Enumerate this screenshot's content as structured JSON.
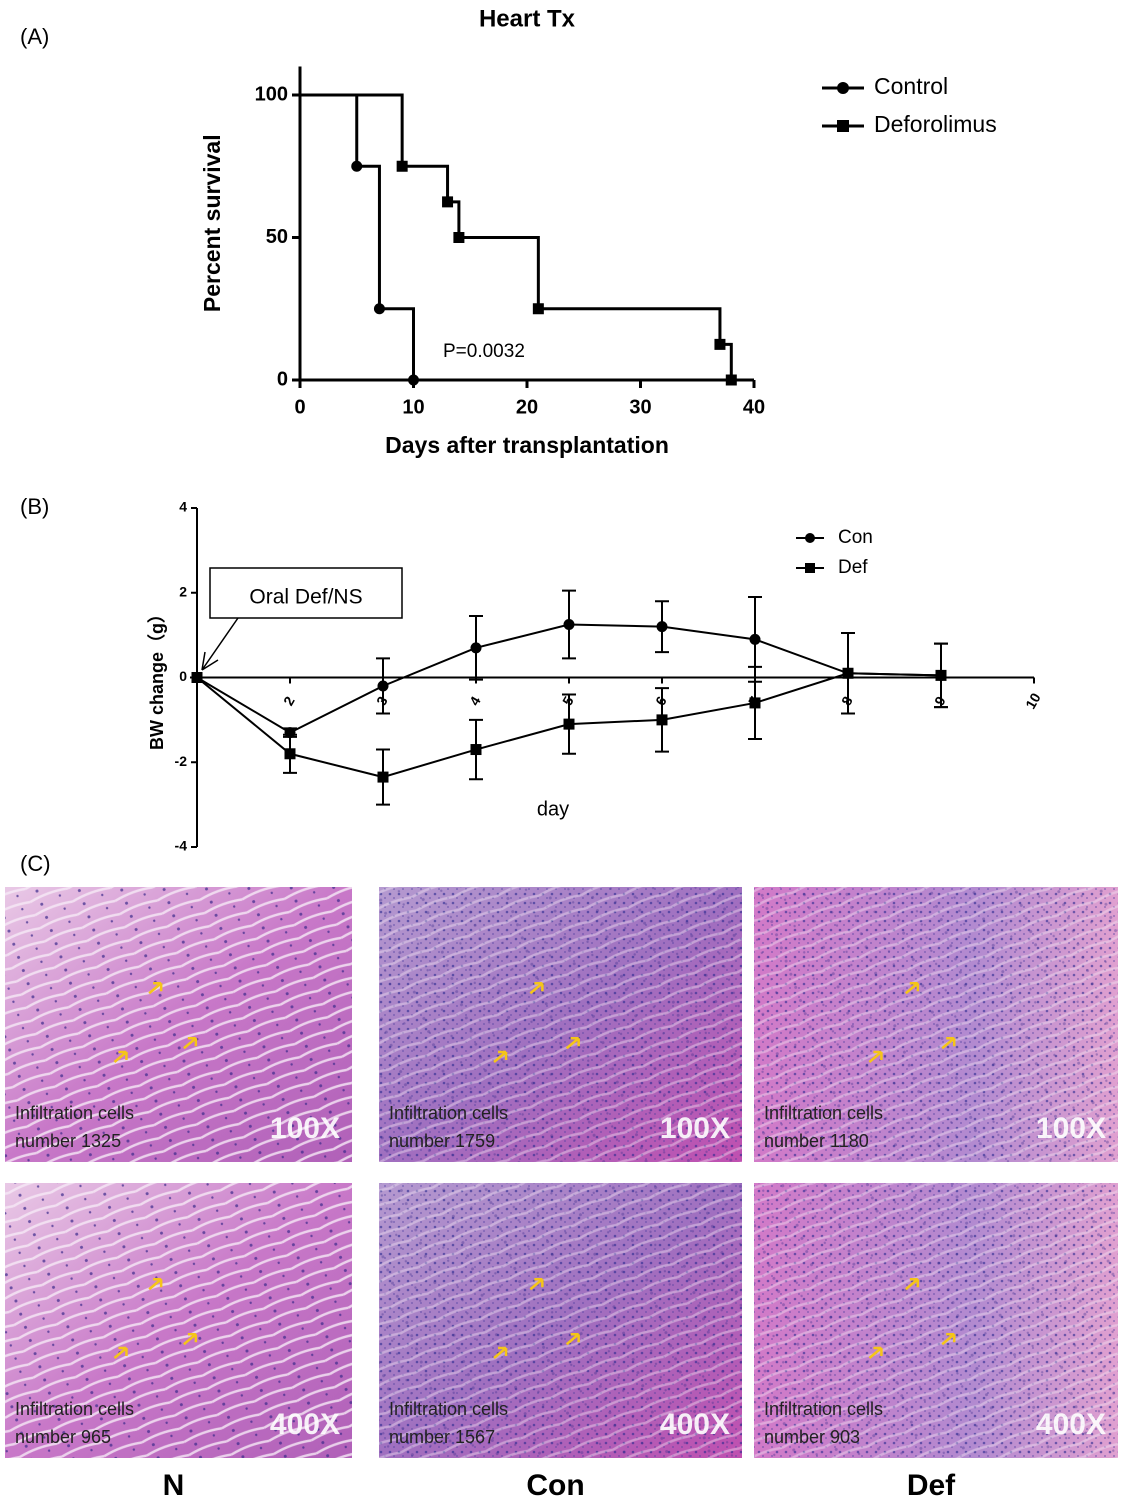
{
  "panel_labels": [
    "(A)",
    "(B)",
    "(C)"
  ],
  "chart_data": [
    {
      "type": "survival",
      "title": "Heart Tx",
      "x_label": "Days after transplantation",
      "y_label": "Percent survival",
      "xlim": [
        0,
        40
      ],
      "xticks": [
        0,
        10,
        20,
        30,
        40
      ],
      "ylim": [
        0,
        110
      ],
      "yticks": [
        0,
        50,
        100
      ],
      "legend": "right",
      "annotation": "P=0.0032",
      "series": [
        {
          "name": "Control",
          "color": "#000000",
          "marker": "circle",
          "x": [
            0,
            5,
            7,
            10
          ],
          "values": [
            100,
            75,
            25,
            0
          ]
        },
        {
          "name": "Deforolimus",
          "color": "#000000",
          "marker": "square",
          "x": [
            0,
            9,
            13,
            14,
            21,
            37,
            38
          ],
          "values": [
            100,
            75,
            62.5,
            50,
            25,
            12.5,
            0
          ]
        }
      ]
    },
    {
      "type": "errorline",
      "x_label": "day",
      "y_label": "BW change（g）",
      "xlim": [
        1,
        10
      ],
      "xticks": [
        2,
        3,
        4,
        5,
        6,
        7,
        8,
        9,
        10
      ],
      "ylim": [
        -4,
        4
      ],
      "yticks": [
        -4,
        -2,
        0,
        2,
        4
      ],
      "legend": "right",
      "annotation": "Oral Def/NS",
      "series": [
        {
          "name": "Con",
          "color": "#000000",
          "marker": "circle",
          "x": [
            1,
            2,
            3,
            4,
            5,
            6,
            7,
            8,
            9
          ],
          "values": [
            0,
            -1.3,
            -0.2,
            0.7,
            1.25,
            1.2,
            0.9,
            0.1,
            0.05
          ],
          "errors": [
            0,
            0.1,
            0.65,
            0.75,
            0.8,
            0.6,
            1.0,
            0.95,
            0.75
          ]
        },
        {
          "name": "Def",
          "color": "#000000",
          "marker": "square",
          "x": [
            1,
            2,
            3,
            4,
            5,
            6,
            7,
            8,
            9
          ],
          "values": [
            0,
            -1.8,
            -2.35,
            -1.7,
            -1.1,
            -1.0,
            -0.6,
            0.1,
            0.05
          ],
          "errors": [
            0,
            0.45,
            0.65,
            0.7,
            0.7,
            0.75,
            0.85,
            0.95,
            0.75
          ]
        }
      ]
    }
  ],
  "histology": {
    "columns": [
      "N",
      "Con",
      "Def"
    ],
    "images": [
      {
        "label": "Infiltration cells",
        "count": "number 1325",
        "magnification": "100X"
      },
      {
        "label": "Infiltration cells",
        "count": "number 1759",
        "magnification": "100X"
      },
      {
        "label": "Infiltration cells",
        "count": "number 1180",
        "magnification": "100X"
      },
      {
        "label": "Infiltration cells",
        "count": "number 965",
        "magnification": "400X"
      },
      {
        "label": "Infiltration cells",
        "count": "number 1567",
        "magnification": "400X"
      },
      {
        "label": "Infiltration cells",
        "count": "number 903",
        "magnification": "400X"
      }
    ]
  }
}
